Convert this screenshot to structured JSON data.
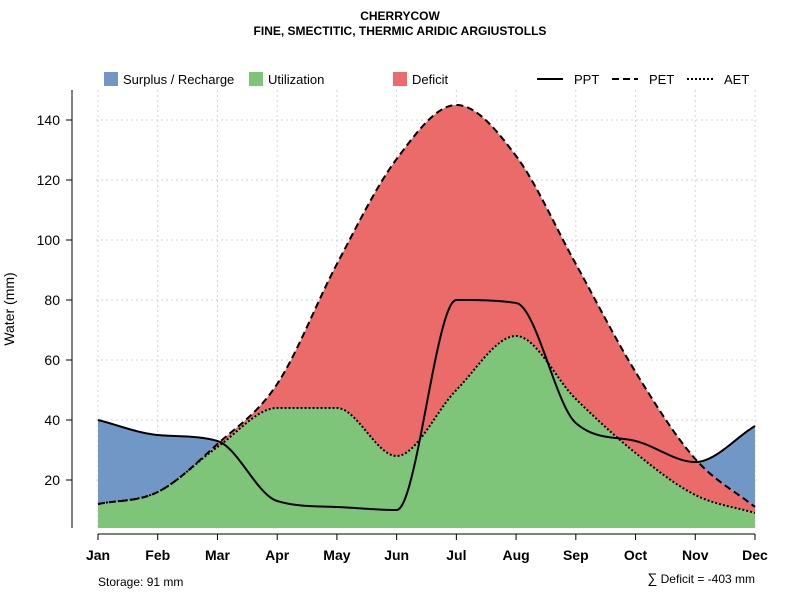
{
  "chart_data": {
    "type": "line",
    "title": "CHERRYCOW",
    "subtitle": "FINE, SMECTITIC, THERMIC ARIDIC ARGIUSTOLLS",
    "xlabel": "",
    "ylabel": "Water (mm)",
    "ylim": [
      4,
      150
    ],
    "yticks": [
      20,
      40,
      60,
      80,
      100,
      120,
      140
    ],
    "grid": true,
    "legend_position": "top",
    "categories": [
      "Jan",
      "Feb",
      "Mar",
      "Apr",
      "May",
      "Jun",
      "Jul",
      "Aug",
      "Sep",
      "Oct",
      "Nov",
      "Dec"
    ],
    "series": [
      {
        "name": "PPT",
        "style": "solid",
        "values": [
          40,
          35,
          33,
          13,
          11,
          10,
          80,
          79,
          39,
          33,
          26,
          38
        ]
      },
      {
        "name": "PET",
        "style": "dashed",
        "values": [
          12,
          16,
          32,
          52,
          92,
          127,
          145,
          128,
          92,
          56,
          27,
          11
        ]
      },
      {
        "name": "AET",
        "style": "dotted",
        "values": [
          12,
          16,
          31,
          44,
          44,
          28,
          50,
          68,
          47,
          29,
          15,
          9
        ]
      }
    ],
    "legend": {
      "areas": [
        {
          "label": "Surplus / Recharge",
          "color": "#7097c6"
        },
        {
          "label": "Utilization",
          "color": "#7ec57a"
        },
        {
          "label": "Deficit",
          "color": "#eb6b6b"
        }
      ],
      "lines": [
        {
          "label": "PPT",
          "style": "solid"
        },
        {
          "label": "PET",
          "style": "dashed"
        },
        {
          "label": "AET",
          "style": "dotted"
        }
      ]
    },
    "annotations": {
      "storage": "Storage: 91 mm",
      "deficit_symbol": "∑",
      "deficit": "Deficit = -403 mm"
    }
  }
}
